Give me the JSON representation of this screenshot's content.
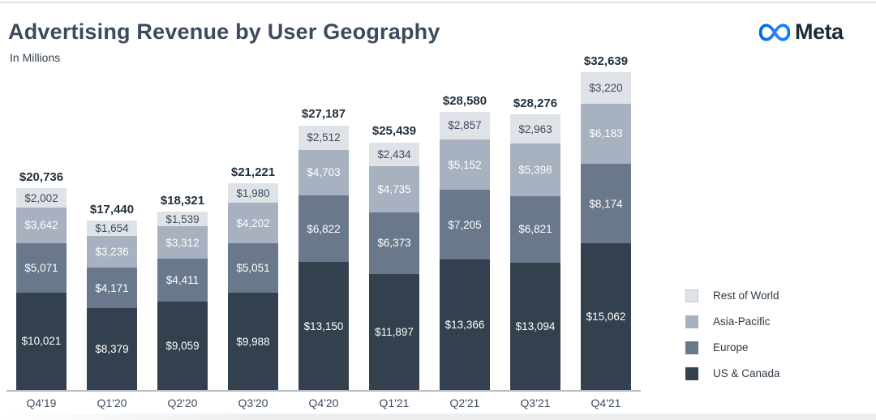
{
  "header": {
    "title": "Advertising Revenue by User Geography",
    "subtitle": "In Millions",
    "brand": "Meta"
  },
  "colors": {
    "title_text": "#3b4a5c",
    "total_label": "#20303e",
    "tick_label": "#3e4c5c",
    "axis_line": "#b7bcc3",
    "brand_text": "#1c2b33",
    "brand_gradient_start": "#0064E0",
    "brand_gradient_end": "#0082FB",
    "us_canada": "#33404e",
    "europe": "#69798b",
    "asia_pacific": "#a7b1bf",
    "rest_of_world": "#dfe3e8"
  },
  "legend": [
    {
      "label": "Rest of World",
      "color": "#dfe3e8",
      "border": "#c3c9d0"
    },
    {
      "label": "Asia-Pacific",
      "color": "#a7b1bf",
      "border": ""
    },
    {
      "label": "Europe",
      "color": "#69798b",
      "border": ""
    },
    {
      "label": "US & Canada",
      "color": "#33404e",
      "border": ""
    }
  ],
  "chart_data": {
    "type": "bar",
    "stacked": true,
    "title": "Advertising Revenue by User Geography",
    "units_note": "In Millions",
    "value_prefix": "$",
    "grid": false,
    "legend_position": "right",
    "categories": [
      "Q4'19",
      "Q1'20",
      "Q2'20",
      "Q3'20",
      "Q4'20",
      "Q1'21",
      "Q2'21",
      "Q3'21",
      "Q4'21"
    ],
    "series": [
      {
        "name": "US & Canada",
        "color": "#33404e",
        "label_color": "#ffffff",
        "values": [
          10021,
          8379,
          9059,
          9988,
          13150,
          11897,
          13366,
          13094,
          15062
        ]
      },
      {
        "name": "Europe",
        "color": "#69798b",
        "label_color": "#ffffff",
        "values": [
          5071,
          4171,
          4411,
          5051,
          6822,
          6373,
          7205,
          6821,
          8174
        ]
      },
      {
        "name": "Asia-Pacific",
        "color": "#a7b1bf",
        "label_color": "#ffffff",
        "values": [
          3642,
          3236,
          3312,
          4202,
          4703,
          4735,
          5152,
          5398,
          6183
        ]
      },
      {
        "name": "Rest of World",
        "color": "#dfe3e8",
        "label_color": "#3e4c5c",
        "values": [
          2002,
          1654,
          1539,
          1980,
          2512,
          2434,
          2857,
          2963,
          3220
        ]
      }
    ],
    "totals": [
      20736,
      17440,
      18321,
      21221,
      27187,
      25439,
      28580,
      28276,
      32639
    ]
  }
}
